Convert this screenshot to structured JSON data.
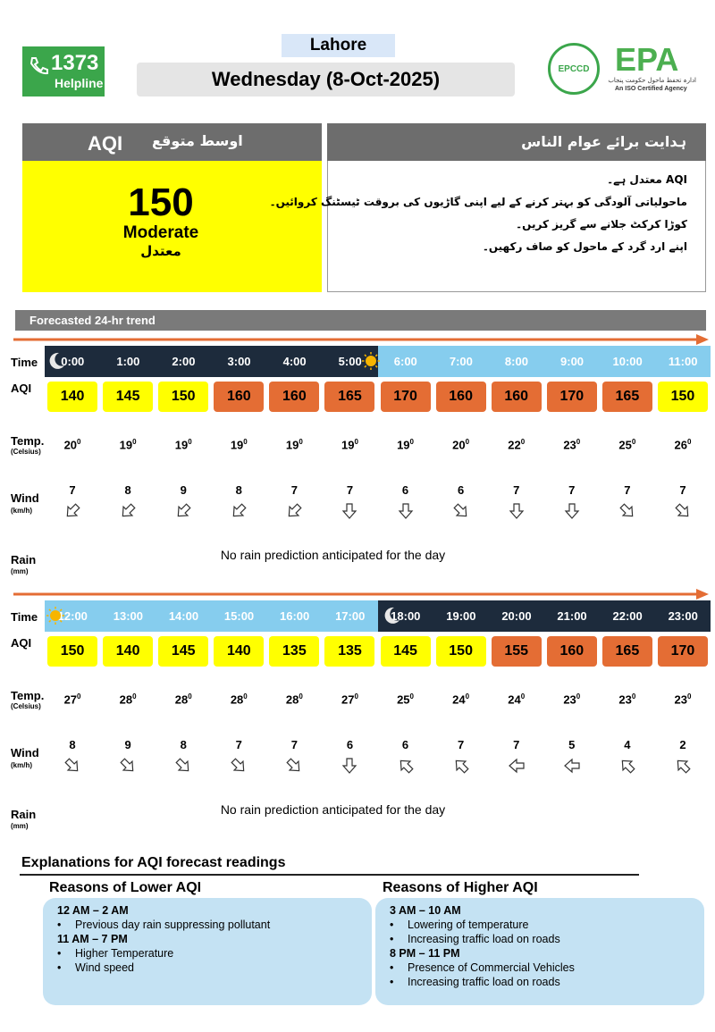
{
  "header": {
    "helpline_number": "1373",
    "helpline_label": "Helpline",
    "city": "Lahore",
    "date": "Wednesday (8-Oct-2025)",
    "logo_text": "EPCCD",
    "agency": "EPA",
    "agency_urdu": "ادارہ تحفظ ماحول حکومت پنجاب",
    "agency_tagline": "An ISO Certified Agency"
  },
  "aqi_box": {
    "label": "AQI",
    "label_urdu": "اوسط متوقع",
    "value": "150",
    "category": "Moderate",
    "category_urdu": "معتدل"
  },
  "advice": {
    "title": "ہدایت برائے عوام الناس",
    "items": [
      "AQI معتدل ہے۔",
      "ماحولیاتی آلودگی کو بہتر کرنے کے لیے اپنی گاڑیوں کی بروقت ٹیسٹنگ کروائیں۔",
      "کوڑا کرکٹ جلانے سے گریز کریں۔",
      "اپنے ارد گرد کے ماحول کو صاف رکھیں۔"
    ]
  },
  "trend": {
    "title": "Forecasted 24-hr trend",
    "time_label": "Time",
    "aqi_label": "AQI",
    "temp_label": "Temp.",
    "temp_unit": "(Celsius)",
    "degree_symbol": "0",
    "wind_label": "Wind",
    "wind_unit": "(km/h)",
    "rain_label": "Rain",
    "rain_unit": "(mm)",
    "blocks": [
      {
        "hours": [
          "0:00",
          "1:00",
          "2:00",
          "3:00",
          "4:00",
          "5:00",
          "6:00",
          "7:00",
          "8:00",
          "9:00",
          "10:00",
          "11:00"
        ],
        "aqi": [
          140,
          145,
          150,
          160,
          160,
          165,
          170,
          160,
          160,
          170,
          165,
          150
        ],
        "aqi_colors": [
          "#ffff00",
          "#ffff00",
          "#ffff00",
          "#e46d34",
          "#e46d34",
          "#e46d34",
          "#e46d34",
          "#e46d34",
          "#e46d34",
          "#e46d34",
          "#e46d34",
          "#ffff00"
        ],
        "temp": [
          20,
          19,
          19,
          19,
          19,
          19,
          19,
          20,
          22,
          23,
          25,
          26
        ],
        "wind": [
          7,
          8,
          9,
          8,
          7,
          7,
          6,
          6,
          7,
          7,
          7,
          7
        ],
        "wind_direction_deg": [
          225,
          225,
          225,
          225,
          225,
          180,
          180,
          135,
          180,
          180,
          135,
          135
        ],
        "rain_note": "No rain prediction anticipated for the day"
      },
      {
        "hours": [
          "12:00",
          "13:00",
          "14:00",
          "15:00",
          "16:00",
          "17:00",
          "18:00",
          "19:00",
          "20:00",
          "21:00",
          "22:00",
          "23:00"
        ],
        "aqi": [
          150,
          140,
          145,
          140,
          135,
          135,
          145,
          150,
          155,
          160,
          165,
          170
        ],
        "aqi_colors": [
          "#ffff00",
          "#ffff00",
          "#ffff00",
          "#ffff00",
          "#ffff00",
          "#ffff00",
          "#ffff00",
          "#ffff00",
          "#e46d34",
          "#e46d34",
          "#e46d34",
          "#e46d34"
        ],
        "temp": [
          27,
          28,
          28,
          28,
          28,
          27,
          25,
          24,
          24,
          23,
          23,
          23
        ],
        "wind": [
          8,
          9,
          8,
          7,
          7,
          6,
          6,
          7,
          7,
          5,
          4,
          2
        ],
        "wind_direction_deg": [
          135,
          135,
          135,
          135,
          135,
          180,
          315,
          315,
          270,
          270,
          315,
          315
        ],
        "rain_note": "No rain prediction anticipated for the day"
      }
    ]
  },
  "explanations": {
    "title": "Explanations for AQI forecast readings",
    "lower": {
      "title": "Reasons of Lower AQI",
      "groups": [
        {
          "period": "12 AM – 2 AM",
          "items": [
            "Previous day rain suppressing pollutant"
          ]
        },
        {
          "period": "11 AM – 7 PM",
          "items": [
            "Higher Temperature",
            "Wind speed"
          ]
        }
      ]
    },
    "higher": {
      "title": "Reasons of Higher AQI",
      "groups": [
        {
          "period": "3 AM – 10 AM",
          "items": [
            "Lowering of temperature",
            "Increasing traffic load on roads"
          ]
        },
        {
          "period": "8 PM – 11 PM",
          "items": [
            "Presence of Commercial Vehicles",
            "Increasing traffic load on roads"
          ]
        }
      ]
    }
  }
}
